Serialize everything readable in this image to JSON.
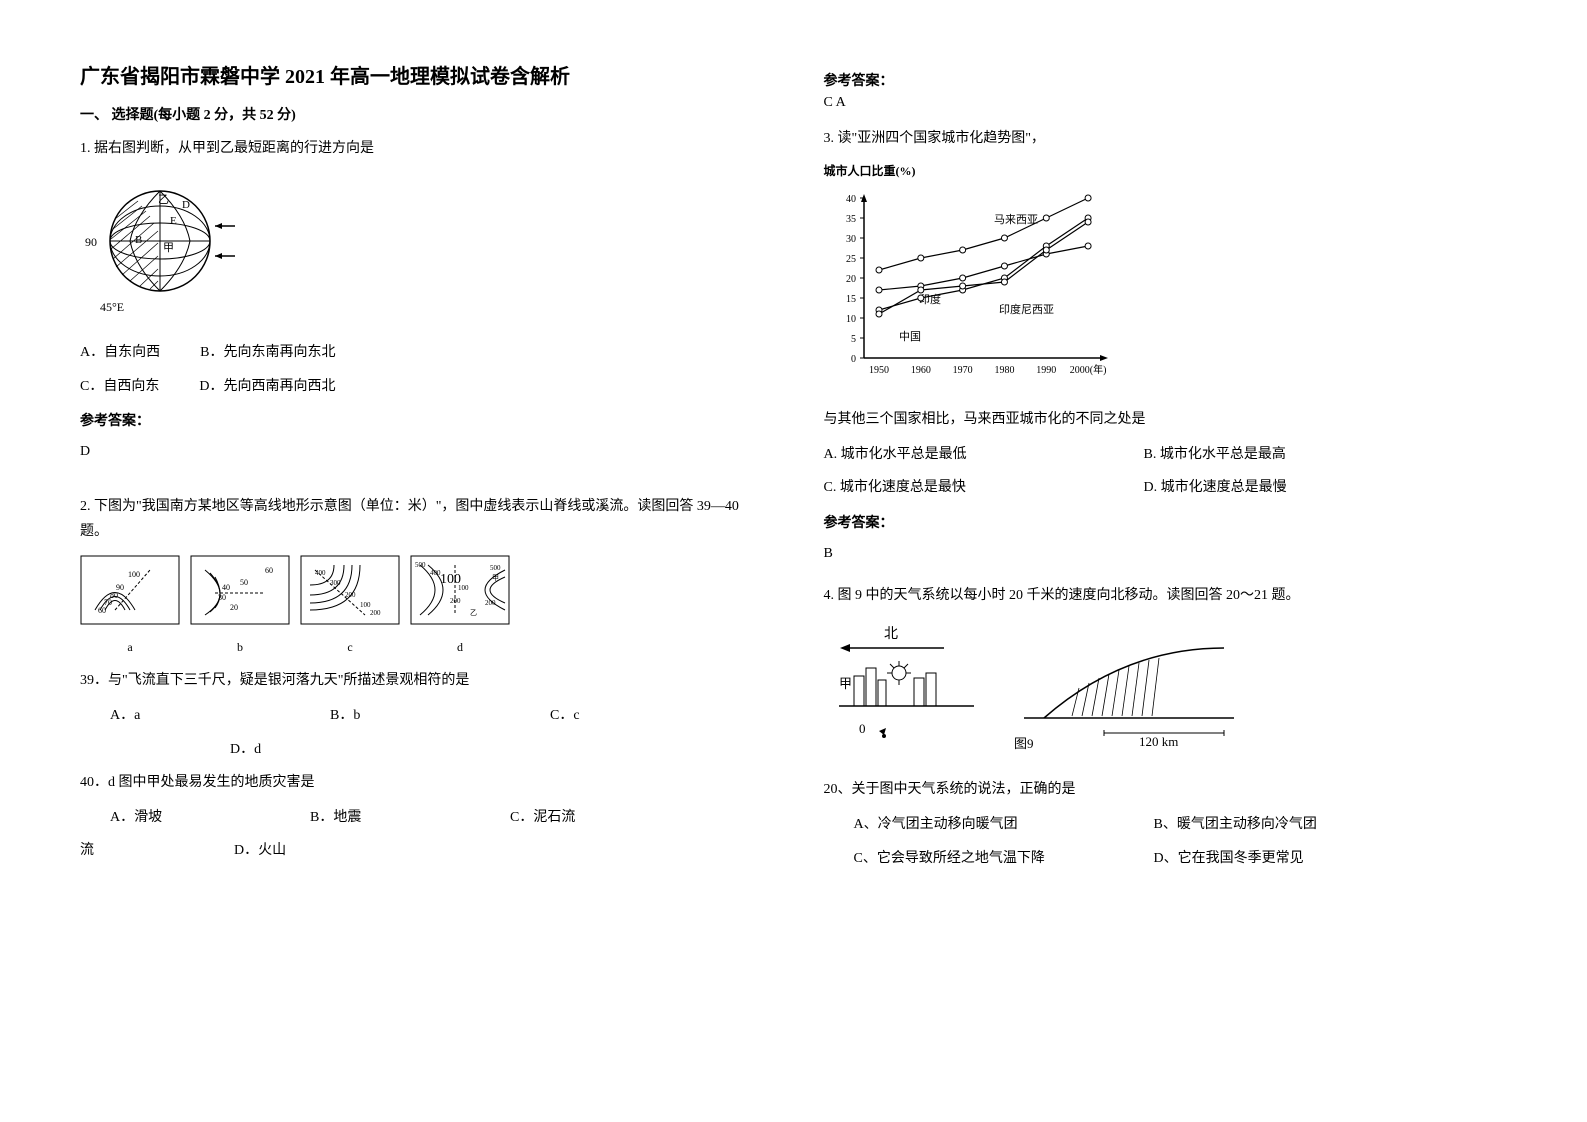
{
  "title": "广东省揭阳市霖磐中学 2021 年高一地理模拟试卷含解析",
  "section1": {
    "header": "一、 选择题(每小题 2 分，共 52 分)"
  },
  "q1": {
    "text": "1. 据右图判断，从甲到乙最短距离的行进方向是",
    "optA": "A．自东向西",
    "optB": "B．先向东南再向东北",
    "optC": "C．自西向东",
    "optD": "D．先向西南再向西北",
    "answerLabel": "参考答案：",
    "answer": "D",
    "figure": {
      "label90": "90",
      "label45E": "45°E",
      "labelZ": "乙",
      "labelD": "D",
      "labelE": "E",
      "labelB": "B",
      "labelJia": "甲"
    }
  },
  "q2": {
    "text": "2. 下图为\"我国南方某地区等高线地形示意图（单位：米）\"，图中虚线表示山脊线或溪流。读图回答 39—40 题。",
    "subLabels": {
      "a": "a",
      "b": "b",
      "c": "c",
      "d": "d"
    },
    "q39": {
      "text": "39．与\"飞流直下三千尺，疑是银河落九天\"所描述景观相符的是",
      "optA": "A．a",
      "optB": "B．b",
      "optC": "C．c",
      "optD": "D．d"
    },
    "q40": {
      "text": "40．d 图中甲处最易发生的地质灾害是",
      "optA": "A．滑坡",
      "optB": "B．地震",
      "optC": "C．泥石流",
      "optD": "D．火山"
    }
  },
  "col2": {
    "answerLabel": "参考答案：",
    "answer2": "C  A"
  },
  "q3": {
    "text": "3. 读\"亚洲四个国家城市化趋势图\"，",
    "chartTitle": "城市人口比重(%)",
    "chart": {
      "yValues": [
        0,
        5,
        10,
        15,
        20,
        25,
        30,
        35,
        40
      ],
      "xValues": [
        "1950",
        "1960",
        "1970",
        "1980",
        "1990",
        "2000(年)"
      ],
      "series": {
        "malaysia": {
          "label": "马来西亚",
          "data": [
            22,
            25,
            27,
            30,
            35,
            40
          ]
        },
        "india": {
          "label": "印度",
          "data": [
            17,
            18,
            20,
            23,
            26,
            28
          ]
        },
        "indonesia": {
          "label": "印度尼西亚",
          "data": [
            12,
            15,
            17,
            20,
            28,
            35
          ]
        },
        "china": {
          "label": "中国",
          "data": [
            11,
            17,
            18,
            19,
            27,
            34
          ]
        }
      },
      "line_color": "#000000",
      "marker": "circle"
    },
    "subtext": "与其他三个国家相比，马来西亚城市化的不同之处是",
    "optA": "A. 城市化水平总是最低",
    "optB": "B. 城市化水平总是最高",
    "optC": "C. 城市化速度总是最快",
    "optD": "D. 城市化速度总是最慢",
    "answerLabel": "参考答案：",
    "answer": "B"
  },
  "q4": {
    "text": "4. 图 9 中的天气系统以每小时 20 千米的速度向北移动。读图回答 20～21 题。",
    "figLabels": {
      "north": "北",
      "jia": "甲",
      "zero": "0",
      "dist": "120 km",
      "figNum": "图9"
    },
    "q20": {
      "text": "20、关于图中天气系统的说法，正确的是",
      "optA": "A、冷气团主动移向暖气团",
      "optB": "B、暖气团主动移向冷气团",
      "optC": "C、它会导致所经之地气温下降",
      "optD": "D、它在我国冬季更常见"
    }
  }
}
